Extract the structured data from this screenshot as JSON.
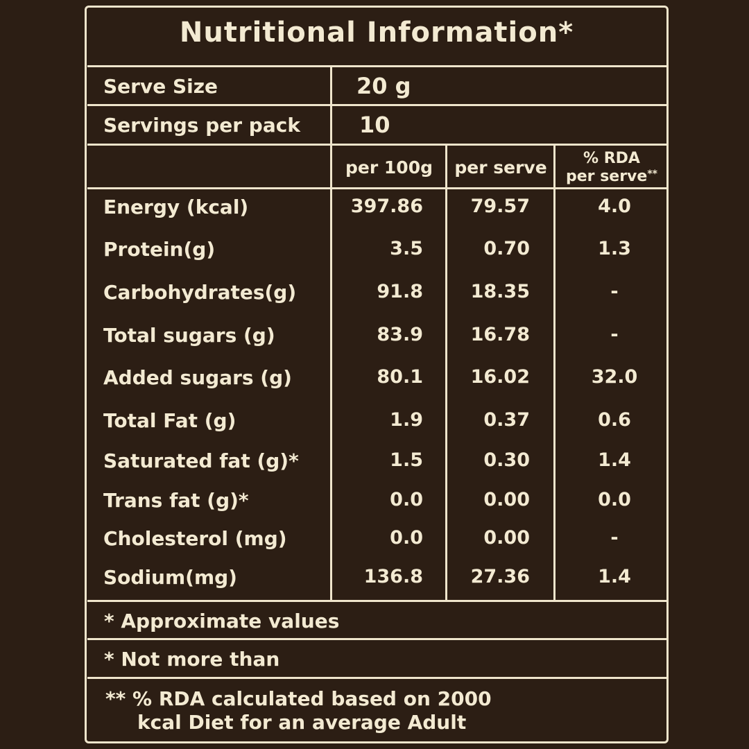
{
  "title": "Nutritional Information*",
  "serve_size": {
    "label": "Serve Size",
    "value": "20 g"
  },
  "servings": {
    "label": "Servings per pack",
    "value": "10"
  },
  "columns": {
    "per100": "per 100g",
    "perserve": "per serve",
    "rda_line1": "% RDA",
    "rda_line2": "per serve",
    "rda_mark": "**"
  },
  "rows": [
    {
      "name": "Energy (kcal)",
      "per100": "397.86",
      "perserve": "79.57",
      "rda": "4.0"
    },
    {
      "name": "Protein(g)",
      "per100": "3.5",
      "perserve": "0.70",
      "rda": "1.3"
    },
    {
      "name": "Carbohydrates(g)",
      "per100": "91.8",
      "perserve": "18.35",
      "rda": "-"
    },
    {
      "name": "Total sugars (g)",
      "per100": "83.9",
      "perserve": "16.78",
      "rda": "-"
    },
    {
      "name": "Added sugars (g)",
      "per100": "80.1",
      "perserve": "16.02",
      "rda": "32.0"
    },
    {
      "name": "Total Fat (g)",
      "per100": "1.9",
      "perserve": "0.37",
      "rda": "0.6"
    },
    {
      "name": "Saturated fat (g)*",
      "per100": "1.5",
      "perserve": "0.30",
      "rda": "1.4"
    },
    {
      "name": "Trans fat (g)*",
      "per100": "0.0",
      "perserve": "0.00",
      "rda": "0.0"
    },
    {
      "name": "Cholesterol (mg)",
      "per100": "0.0",
      "perserve": "0.00",
      "rda": "-"
    },
    {
      "name": "Sodium(mg)",
      "per100": "136.8",
      "perserve": "27.36",
      "rda": "1.4"
    }
  ],
  "notes": {
    "approx": "* Approximate values",
    "nmt": "* Not more than",
    "rda_line1": "** % RDA calculated based on 2000",
    "rda_line2": "kcal Diet for an average Adult"
  }
}
